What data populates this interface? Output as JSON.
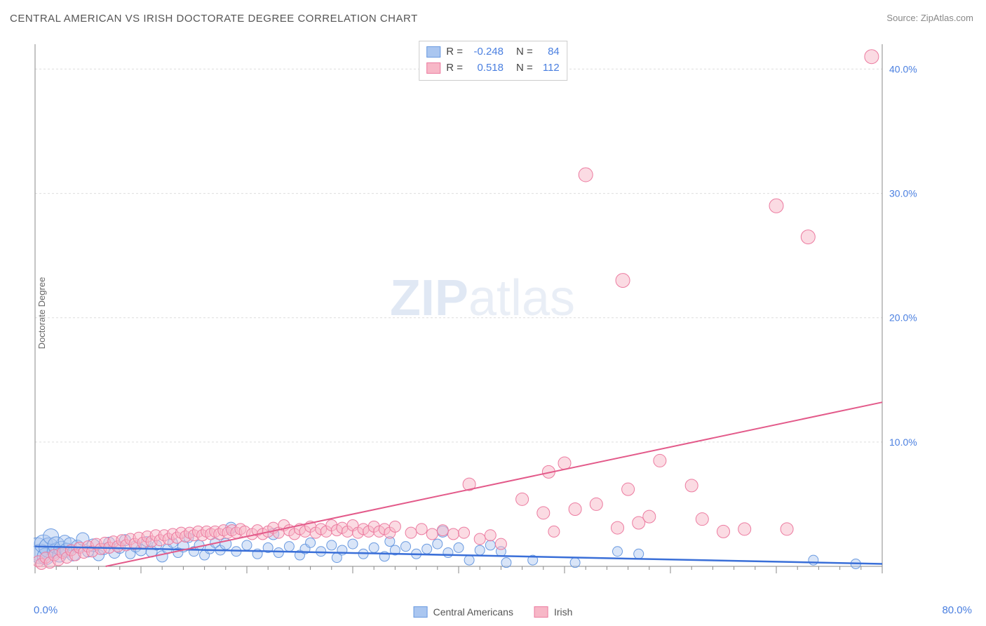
{
  "title": "CENTRAL AMERICAN VS IRISH DOCTORATE DEGREE CORRELATION CHART",
  "source_label": "Source:",
  "source_name": "ZipAtlas.com",
  "y_axis_label": "Doctorate Degree",
  "watermark_bold": "ZIP",
  "watermark_light": "atlas",
  "chart": {
    "type": "scatter",
    "xlim": [
      0,
      80
    ],
    "ylim": [
      0,
      42
    ],
    "x_origin": "0.0%",
    "x_max": "80.0%",
    "y_ticks": [
      10,
      20,
      30,
      40
    ],
    "y_tick_labels": [
      "10.0%",
      "20.0%",
      "30.0%",
      "40.0%"
    ],
    "x_minor_tick_count": 40,
    "x_major_tick_every": 5,
    "background": "#ffffff",
    "grid_color": "#dddddd",
    "axis_color": "#888888",
    "series": [
      {
        "id": "central_americans",
        "label": "Central Americans",
        "fill": "#aac6f0",
        "stroke": "#6a9ae0",
        "fill_opacity": 0.45,
        "R": "-0.248",
        "N": "84",
        "trend": {
          "x1": 0,
          "y1": 1.6,
          "x2": 80,
          "y2": 0.2,
          "color": "#3a6fd8",
          "width": 2.5
        },
        "points": [
          [
            0.2,
            1.4,
            16
          ],
          [
            0.5,
            1.0,
            14
          ],
          [
            0.8,
            1.8,
            13
          ],
          [
            1.0,
            0.8,
            12
          ],
          [
            1.3,
            1.5,
            14
          ],
          [
            1.5,
            2.4,
            11
          ],
          [
            1.8,
            1.2,
            10
          ],
          [
            2.0,
            1.7,
            12
          ],
          [
            2.3,
            0.9,
            10
          ],
          [
            2.5,
            1.4,
            11
          ],
          [
            2.8,
            2.0,
            9
          ],
          [
            3.0,
            1.3,
            10
          ],
          [
            3.3,
            1.8,
            9
          ],
          [
            3.6,
            1.0,
            10
          ],
          [
            4.0,
            1.6,
            9
          ],
          [
            4.5,
            2.2,
            9
          ],
          [
            5.0,
            1.2,
            8
          ],
          [
            5.5,
            1.7,
            9
          ],
          [
            6.0,
            0.9,
            8
          ],
          [
            6.5,
            1.4,
            8
          ],
          [
            7.0,
            1.9,
            8
          ],
          [
            7.5,
            1.1,
            8
          ],
          [
            8.0,
            1.5,
            8
          ],
          [
            8.5,
            2.1,
            8
          ],
          [
            9.0,
            1.0,
            7
          ],
          [
            9.5,
            1.6,
            8
          ],
          [
            10.0,
            1.3,
            8
          ],
          [
            10.5,
            2.0,
            7
          ],
          [
            11.0,
            1.2,
            8
          ],
          [
            11.5,
            1.7,
            7
          ],
          [
            12.0,
            0.8,
            8
          ],
          [
            12.5,
            1.4,
            7
          ],
          [
            13.0,
            1.9,
            7
          ],
          [
            13.5,
            1.1,
            7
          ],
          [
            14.0,
            1.6,
            8
          ],
          [
            14.5,
            2.3,
            7
          ],
          [
            15.0,
            1.2,
            7
          ],
          [
            15.5,
            1.7,
            7
          ],
          [
            16.0,
            0.9,
            7
          ],
          [
            16.5,
            1.4,
            7
          ],
          [
            17.0,
            1.9,
            7
          ],
          [
            17.5,
            1.3,
            7
          ],
          [
            18.0,
            1.8,
            8
          ],
          [
            18.5,
            3.1,
            8
          ],
          [
            19.0,
            1.2,
            7
          ],
          [
            20.0,
            1.7,
            7
          ],
          [
            21.0,
            1.0,
            7
          ],
          [
            22.0,
            1.5,
            7
          ],
          [
            22.5,
            2.6,
            8
          ],
          [
            23.0,
            1.1,
            7
          ],
          [
            24.0,
            1.6,
            7
          ],
          [
            25.0,
            0.9,
            7
          ],
          [
            25.5,
            1.4,
            7
          ],
          [
            26.0,
            1.9,
            7
          ],
          [
            27.0,
            1.2,
            7
          ],
          [
            28.0,
            1.7,
            7
          ],
          [
            28.5,
            0.7,
            7
          ],
          [
            29.0,
            1.3,
            7
          ],
          [
            30.0,
            1.8,
            7
          ],
          [
            31.0,
            1.0,
            7
          ],
          [
            32.0,
            1.5,
            7
          ],
          [
            33.0,
            0.8,
            7
          ],
          [
            33.5,
            2.0,
            7
          ],
          [
            34.0,
            1.3,
            7
          ],
          [
            35.0,
            1.6,
            7
          ],
          [
            36.0,
            1.0,
            7
          ],
          [
            37.0,
            1.4,
            7
          ],
          [
            38.0,
            1.8,
            7
          ],
          [
            38.5,
            2.8,
            8
          ],
          [
            39.0,
            1.1,
            7
          ],
          [
            40.0,
            1.5,
            7
          ],
          [
            41.0,
            0.5,
            7
          ],
          [
            42.0,
            1.3,
            7
          ],
          [
            43.0,
            1.7,
            7
          ],
          [
            44.0,
            1.2,
            7
          ],
          [
            44.5,
            0.3,
            7
          ],
          [
            47.0,
            0.5,
            7
          ],
          [
            51.0,
            0.3,
            7
          ],
          [
            55.0,
            1.2,
            7
          ],
          [
            57.0,
            1.0,
            7
          ],
          [
            73.5,
            0.5,
            7
          ],
          [
            77.5,
            0.2,
            7
          ]
        ]
      },
      {
        "id": "irish",
        "label": "Irish",
        "fill": "#f7b7c7",
        "stroke": "#ec7ba0",
        "fill_opacity": 0.5,
        "R": "0.518",
        "N": "112",
        "trend": {
          "x1": 0,
          "y1": -1.2,
          "x2": 80,
          "y2": 13.2,
          "color": "#e35a8a",
          "width": 2
        },
        "points": [
          [
            0.3,
            0.4,
            8
          ],
          [
            0.6,
            0.2,
            8
          ],
          [
            1.0,
            0.7,
            8
          ],
          [
            1.4,
            0.3,
            8
          ],
          [
            1.8,
            0.9,
            8
          ],
          [
            2.2,
            0.5,
            8
          ],
          [
            2.6,
            1.1,
            8
          ],
          [
            3.0,
            0.7,
            8
          ],
          [
            3.4,
            1.3,
            8
          ],
          [
            3.8,
            0.9,
            8
          ],
          [
            4.2,
            1.5,
            8
          ],
          [
            4.6,
            1.1,
            8
          ],
          [
            5.0,
            1.6,
            8
          ],
          [
            5.4,
            1.2,
            8
          ],
          [
            5.8,
            1.8,
            8
          ],
          [
            6.2,
            1.4,
            8
          ],
          [
            6.6,
            1.9,
            8
          ],
          [
            7.0,
            1.5,
            8
          ],
          [
            7.4,
            2.0,
            8
          ],
          [
            7.8,
            1.6,
            8
          ],
          [
            8.2,
            2.1,
            8
          ],
          [
            8.6,
            1.7,
            8
          ],
          [
            9.0,
            2.2,
            8
          ],
          [
            9.4,
            1.8,
            8
          ],
          [
            9.8,
            2.3,
            8
          ],
          [
            10.2,
            1.9,
            8
          ],
          [
            10.6,
            2.4,
            8
          ],
          [
            11.0,
            2.0,
            8
          ],
          [
            11.4,
            2.5,
            8
          ],
          [
            11.8,
            2.1,
            8
          ],
          [
            12.2,
            2.5,
            8
          ],
          [
            12.6,
            2.2,
            8
          ],
          [
            13.0,
            2.6,
            8
          ],
          [
            13.4,
            2.3,
            8
          ],
          [
            13.8,
            2.7,
            8
          ],
          [
            14.2,
            2.4,
            8
          ],
          [
            14.6,
            2.7,
            8
          ],
          [
            15.0,
            2.5,
            8
          ],
          [
            15.4,
            2.8,
            8
          ],
          [
            15.8,
            2.5,
            8
          ],
          [
            16.2,
            2.8,
            8
          ],
          [
            16.6,
            2.6,
            8
          ],
          [
            17.0,
            2.8,
            8
          ],
          [
            17.4,
            2.6,
            8
          ],
          [
            17.8,
            2.9,
            8
          ],
          [
            18.2,
            2.7,
            8
          ],
          [
            18.6,
            2.9,
            8
          ],
          [
            19.0,
            2.7,
            8
          ],
          [
            19.4,
            3.0,
            8
          ],
          [
            19.8,
            2.8,
            8
          ],
          [
            20.5,
            2.6,
            8
          ],
          [
            21.0,
            2.9,
            8
          ],
          [
            21.5,
            2.6,
            8
          ],
          [
            22.0,
            2.8,
            8
          ],
          [
            22.5,
            3.1,
            8
          ],
          [
            23.0,
            2.7,
            8
          ],
          [
            23.5,
            3.3,
            8
          ],
          [
            24.0,
            2.9,
            8
          ],
          [
            24.5,
            2.6,
            8
          ],
          [
            25.0,
            3.0,
            8
          ],
          [
            25.5,
            2.8,
            8
          ],
          [
            26.0,
            3.2,
            8
          ],
          [
            26.5,
            2.7,
            8
          ],
          [
            27.0,
            3.0,
            8
          ],
          [
            27.5,
            2.8,
            8
          ],
          [
            28.0,
            3.3,
            8
          ],
          [
            28.5,
            2.9,
            8
          ],
          [
            29.0,
            3.1,
            8
          ],
          [
            29.5,
            2.8,
            8
          ],
          [
            30.0,
            3.3,
            8
          ],
          [
            30.5,
            2.7,
            8
          ],
          [
            31.0,
            3.0,
            8
          ],
          [
            31.5,
            2.8,
            8
          ],
          [
            32.0,
            3.2,
            8
          ],
          [
            32.5,
            2.8,
            8
          ],
          [
            33.0,
            3.0,
            8
          ],
          [
            33.5,
            2.7,
            8
          ],
          [
            34.0,
            3.2,
            8
          ],
          [
            35.5,
            2.7,
            8
          ],
          [
            36.5,
            3.0,
            8
          ],
          [
            37.5,
            2.6,
            8
          ],
          [
            38.5,
            2.9,
            8
          ],
          [
            39.5,
            2.6,
            8
          ],
          [
            40.5,
            2.7,
            8
          ],
          [
            41.0,
            6.6,
            9
          ],
          [
            42.0,
            2.2,
            8
          ],
          [
            43.0,
            2.5,
            8
          ],
          [
            44.0,
            1.8,
            8
          ],
          [
            46.0,
            5.4,
            9
          ],
          [
            48.0,
            4.3,
            9
          ],
          [
            48.5,
            7.6,
            9
          ],
          [
            49.0,
            2.8,
            8
          ],
          [
            50.0,
            8.3,
            9
          ],
          [
            51.0,
            4.6,
            9
          ],
          [
            53.0,
            5.0,
            9
          ],
          [
            55.0,
            3.1,
            9
          ],
          [
            55.5,
            23.0,
            10
          ],
          [
            56.0,
            6.2,
            9
          ],
          [
            57.0,
            3.5,
            9
          ],
          [
            58.0,
            4.0,
            9
          ],
          [
            59.0,
            8.5,
            9
          ],
          [
            52.0,
            31.5,
            10
          ],
          [
            62.0,
            6.5,
            9
          ],
          [
            63.0,
            3.8,
            9
          ],
          [
            65.0,
            2.8,
            9
          ],
          [
            67.0,
            3.0,
            9
          ],
          [
            70.0,
            29.0,
            10
          ],
          [
            71.0,
            3.0,
            9
          ],
          [
            73.0,
            26.5,
            10
          ],
          [
            79.0,
            41.0,
            10
          ]
        ]
      }
    ]
  },
  "legend_bottom": [
    {
      "label": "Central Americans",
      "fill": "#aac6f0",
      "stroke": "#6a9ae0"
    },
    {
      "label": "Irish",
      "fill": "#f7b7c7",
      "stroke": "#ec7ba0"
    }
  ]
}
